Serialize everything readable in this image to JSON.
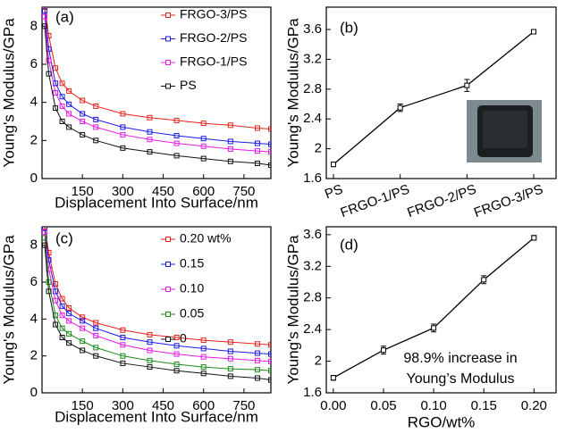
{
  "chart_data": [
    {
      "type": "line",
      "panel_label": "(a)",
      "x_label": "Displacement Into Surface/nm",
      "y_label": "Young's Modulus/GPa",
      "xlim": [
        0,
        850
      ],
      "ylim": [
        0,
        9
      ],
      "xticks": [
        150,
        300,
        450,
        600,
        750
      ],
      "yticks": [
        0,
        2,
        4,
        6,
        8
      ],
      "marker": "square",
      "x": [
        10,
        25,
        50,
        75,
        100,
        150,
        200,
        300,
        400,
        500,
        600,
        700,
        800,
        850
      ],
      "series": [
        {
          "name": "FRGO-3/PS",
          "color": "#e8211c",
          "values": [
            9,
            7.5,
            5.8,
            5.0,
            4.6,
            4.1,
            3.8,
            3.4,
            3.2,
            3.05,
            2.9,
            2.8,
            2.65,
            2.6
          ]
        },
        {
          "name": "FRGO-2/PS",
          "color": "#1a1ae6",
          "values": [
            8.8,
            6.8,
            5.0,
            4.3,
            3.9,
            3.4,
            3.1,
            2.7,
            2.45,
            2.25,
            2.1,
            1.95,
            1.85,
            1.8
          ]
        },
        {
          "name": "FRGO-1/PS",
          "color": "#e619e6",
          "values": [
            8.5,
            6.2,
            4.5,
            3.8,
            3.4,
            3.0,
            2.7,
            2.3,
            2.05,
            1.85,
            1.7,
            1.55,
            1.45,
            1.4
          ]
        },
        {
          "name": "PS",
          "color": "#111111",
          "values": [
            8,
            5.5,
            3.7,
            3.0,
            2.7,
            2.3,
            2.0,
            1.6,
            1.4,
            1.2,
            1.05,
            0.9,
            0.8,
            0.7
          ]
        }
      ]
    },
    {
      "type": "errorline",
      "panel_label": "(b)",
      "y_label": "Young's Modulus/GPa",
      "ylim": [
        1.6,
        3.9
      ],
      "yticks": [
        1.6,
        2.0,
        2.4,
        2.8,
        3.2,
        3.6
      ],
      "categories": [
        "PS",
        "FRGO-1/PS",
        "FRGO-2/PS",
        "FRGO-3/PS"
      ],
      "series": [
        {
          "color": "#000000",
          "values": [
            1.79,
            2.55,
            2.85,
            3.57
          ],
          "errors": [
            0.03,
            0.05,
            0.08,
            0.03
          ]
        }
      ]
    },
    {
      "type": "line",
      "panel_label": "(c)",
      "x_label": "Displacement Into Surface/nm",
      "y_label": "Young's Modulus/GPa",
      "xlim": [
        0,
        850
      ],
      "ylim": [
        0,
        9
      ],
      "xticks": [
        150,
        300,
        450,
        600,
        750
      ],
      "yticks": [
        0,
        2,
        4,
        6,
        8
      ],
      "marker": "square",
      "x": [
        10,
        25,
        50,
        75,
        100,
        150,
        200,
        300,
        400,
        500,
        600,
        700,
        800,
        850
      ],
      "series": [
        {
          "name": "0.20 wt%",
          "color": "#e8211c",
          "values": [
            9,
            7.6,
            5.9,
            5.1,
            4.6,
            4.1,
            3.8,
            3.4,
            3.15,
            3.0,
            2.85,
            2.75,
            2.65,
            2.6
          ]
        },
        {
          "name": "0.15",
          "color": "#1a1ae6",
          "values": [
            8.9,
            7.2,
            5.5,
            4.7,
            4.3,
            3.9,
            3.5,
            3.0,
            2.75,
            2.55,
            2.4,
            2.25,
            2.15,
            2.1
          ]
        },
        {
          "name": "0.10",
          "color": "#e619e6",
          "values": [
            8.7,
            6.7,
            5.0,
            4.2,
            3.9,
            3.5,
            3.1,
            2.6,
            2.3,
            2.1,
            1.95,
            1.85,
            1.75,
            1.7
          ]
        },
        {
          "name": "0.05",
          "color": "#1a8c1a",
          "values": [
            8.4,
            6.0,
            4.2,
            3.5,
            3.2,
            2.8,
            2.45,
            2.0,
            1.75,
            1.55,
            1.4,
            1.3,
            1.25,
            1.2
          ]
        },
        {
          "name": "0",
          "color": "#111111",
          "values": [
            8,
            5.5,
            3.7,
            3.0,
            2.7,
            2.3,
            2.0,
            1.6,
            1.4,
            1.2,
            1.05,
            0.9,
            0.8,
            0.7
          ]
        }
      ]
    },
    {
      "type": "errorline",
      "panel_label": "(d)",
      "x_label": "RGO/wt%",
      "y_label": "Young's Modulus/GPa",
      "xlim": [
        -0.007,
        0.222
      ],
      "ylim": [
        1.6,
        3.7
      ],
      "xticks": [
        {
          "value": 0,
          "label": "0.00"
        },
        {
          "value": 0.05,
          "label": "0.05"
        },
        {
          "value": 0.1,
          "label": "0.10"
        },
        {
          "value": 0.15,
          "label": "0.15"
        },
        {
          "value": 0.2,
          "label": "0.20"
        }
      ],
      "yticks": [
        1.6,
        2.0,
        2.4,
        2.8,
        3.2,
        3.6
      ],
      "x": [
        0,
        0.05,
        0.1,
        0.15,
        0.2
      ],
      "series": [
        {
          "color": "#000000",
          "values": [
            1.79,
            2.14,
            2.42,
            3.03,
            3.56
          ],
          "errors": [
            0.03,
            0.05,
            0.05,
            0.05,
            0.03
          ]
        }
      ],
      "annotation": [
        "98.9% increase in",
        "Young’s Modulus"
      ]
    }
  ]
}
